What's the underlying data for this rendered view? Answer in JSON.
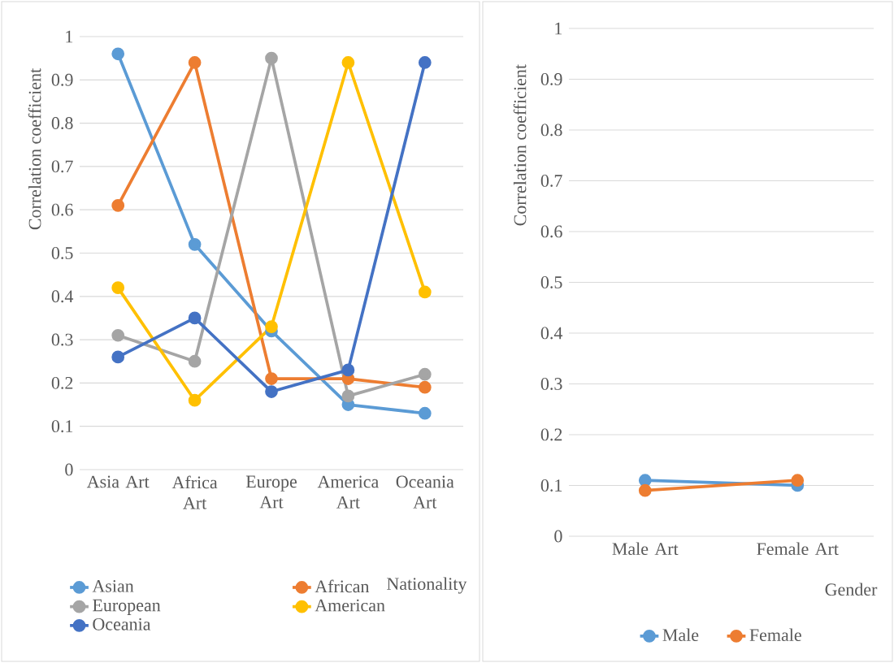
{
  "chart_data": [
    {
      "type": "line",
      "ylabel": "Correlation coefficient",
      "xlabel": "Nationality",
      "categories": [
        "Asia Art",
        "Africa Art",
        "Europe Art",
        "America Art",
        "Oceania Art"
      ],
      "series": [
        {
          "name": "Asian",
          "color": "#5b9bd5",
          "values": [
            0.96,
            0.52,
            0.32,
            0.15,
            0.13
          ]
        },
        {
          "name": "African",
          "color": "#ed7d31",
          "values": [
            0.61,
            0.94,
            0.21,
            0.21,
            0.19
          ]
        },
        {
          "name": "European",
          "color": "#a5a5a5",
          "values": [
            0.31,
            0.25,
            0.95,
            0.17,
            0.22
          ]
        },
        {
          "name": "American",
          "color": "#ffc000",
          "values": [
            0.42,
            0.16,
            0.33,
            0.94,
            0.41
          ]
        },
        {
          "name": "Oceania",
          "color": "#4472c4",
          "values": [
            0.26,
            0.35,
            0.18,
            0.23,
            0.94
          ]
        }
      ],
      "ylim": [
        0,
        1
      ],
      "yticks": [
        0,
        0.1,
        0.2,
        0.3,
        0.4,
        0.5,
        0.6,
        0.7,
        0.8,
        0.9,
        1
      ],
      "grid": "y",
      "legend": "bottom",
      "marker": "circle",
      "line_style": "solid"
    },
    {
      "type": "line",
      "ylabel": "Correlation coefficient",
      "xlabel": "Gender",
      "categories": [
        "Male Art",
        "Female Art"
      ],
      "series": [
        {
          "name": "Male",
          "color": "#5b9bd5",
          "values": [
            0.11,
            0.1
          ]
        },
        {
          "name": "Female",
          "color": "#ed7d31",
          "values": [
            0.09,
            0.11
          ]
        }
      ],
      "ylim": [
        0,
        1
      ],
      "yticks": [
        0,
        0.1,
        0.2,
        0.3,
        0.4,
        0.5,
        0.6,
        0.7,
        0.8,
        0.9,
        1
      ],
      "grid": "y",
      "legend": "bottom",
      "marker": "circle",
      "line_style": "solid"
    }
  ]
}
